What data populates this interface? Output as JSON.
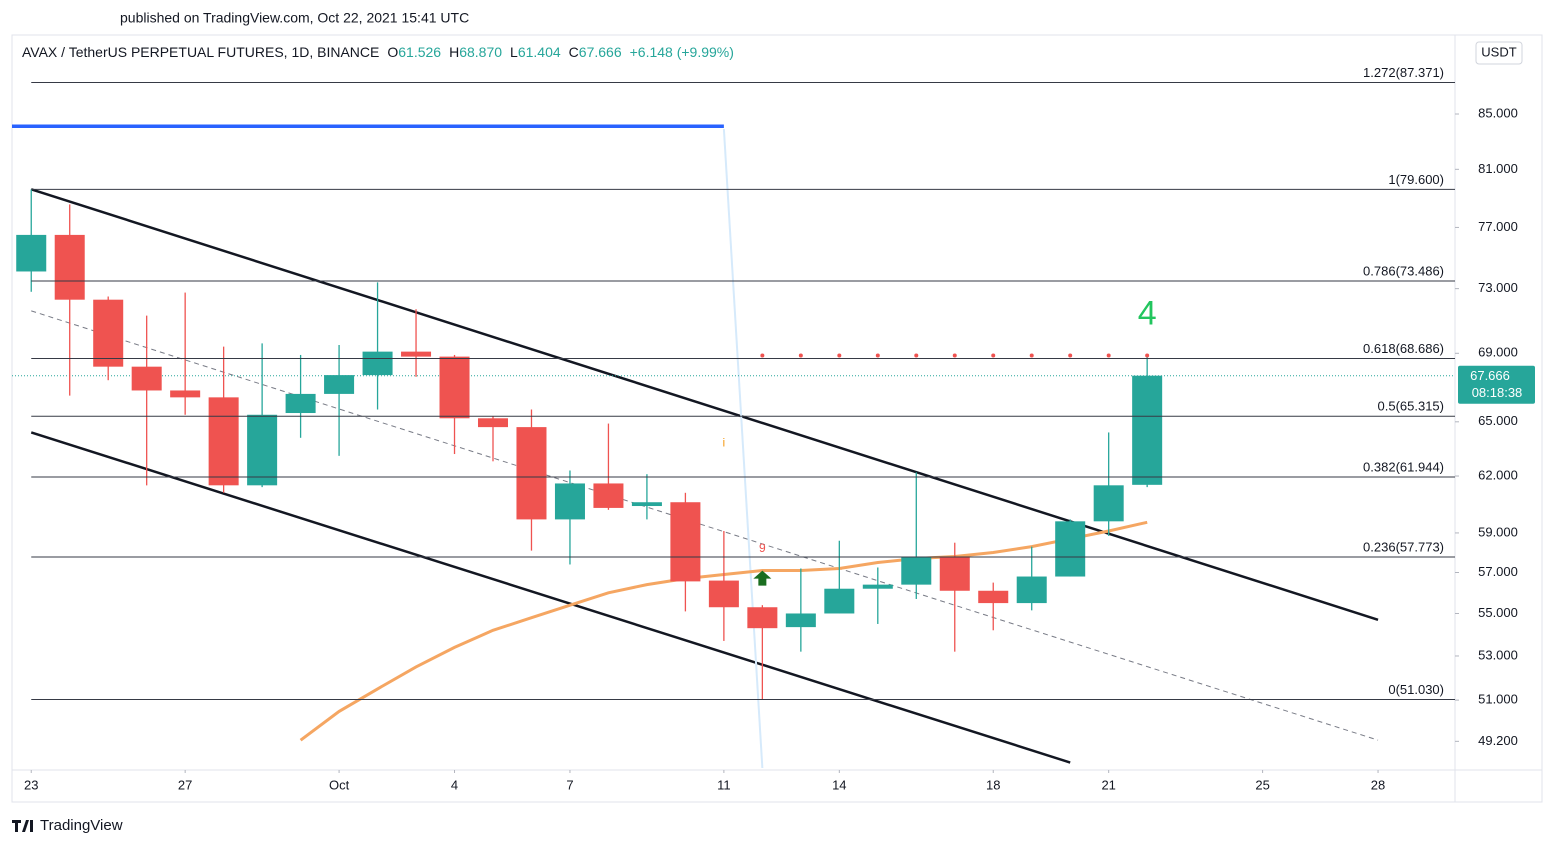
{
  "header": {
    "published": "published on TradingView.com, Oct 22, 2021 15:41 UTC",
    "logo": "TradingView"
  },
  "chart_data": {
    "type": "candlestick",
    "title": "AVAX / TetherUS PERPETUAL FUTURES, 1D, BINANCE",
    "currency": "USDT",
    "ohlc_legend": {
      "open_label": "O",
      "open": "61.526",
      "high_label": "H",
      "high": "68.870",
      "low_label": "L",
      "low": "61.404",
      "close_label": "C",
      "close": "67.666",
      "change": "+6.148 (+9.99%)"
    },
    "x": [
      "2021-09-23",
      "2021-09-24",
      "2021-09-25",
      "2021-09-26",
      "2021-09-27",
      "2021-09-28",
      "2021-09-29",
      "2021-09-30",
      "2021-10-01",
      "2021-10-02",
      "2021-10-03",
      "2021-10-04",
      "2021-10-05",
      "2021-10-06",
      "2021-10-07",
      "2021-10-08",
      "2021-10-09",
      "2021-10-10",
      "2021-10-11",
      "2021-10-12",
      "2021-10-13",
      "2021-10-14",
      "2021-10-15",
      "2021-10-16",
      "2021-10-17",
      "2021-10-18",
      "2021-10-19",
      "2021-10-20",
      "2021-10-21",
      "2021-10-22"
    ],
    "open": [
      74.1,
      76.5,
      72.3,
      68.2,
      66.8,
      66.4,
      61.5,
      65.5,
      66.6,
      67.7,
      69.1,
      68.8,
      65.2,
      64.7,
      59.7,
      61.6,
      60.4,
      60.6,
      56.6,
      55.3,
      54.35,
      55.0,
      56.2,
      56.4,
      57.75,
      56.1,
      55.5,
      56.8,
      59.6,
      61.526
    ],
    "high": [
      79.6,
      78.56,
      72.5,
      71.3,
      72.75,
      69.4,
      69.6,
      68.9,
      69.5,
      73.4,
      71.7,
      68.9,
      65.3,
      65.7,
      62.3,
      64.9,
      62.1,
      61.1,
      59.1,
      55.4,
      57.2,
      58.6,
      57.25,
      62.2,
      58.5,
      56.5,
      58.3,
      59.7,
      64.4,
      68.87
    ],
    "low": [
      72.8,
      66.5,
      67.4,
      61.5,
      65.4,
      61.1,
      61.4,
      64.1,
      63.1,
      65.7,
      67.6,
      63.2,
      62.8,
      58.1,
      57.4,
      60.2,
      59.7,
      55.1,
      53.7,
      51.03,
      53.2,
      55.0,
      54.5,
      55.7,
      53.2,
      54.2,
      55.15,
      56.8,
      58.85,
      61.404
    ],
    "close": [
      76.5,
      72.3,
      68.2,
      66.8,
      66.4,
      61.5,
      65.4,
      66.6,
      67.7,
      69.1,
      68.8,
      65.2,
      64.7,
      59.7,
      61.6,
      60.3,
      60.6,
      56.56,
      55.3,
      54.3,
      55.0,
      56.2,
      56.4,
      57.75,
      56.1,
      55.5,
      56.8,
      59.6,
      61.5,
      67.666
    ],
    "up_color": "#26a69a",
    "down_color": "#ef5350",
    "countdown": "08:18:38",
    "log_scale": true,
    "xlim": [
      "2021-09-22T12:00:00Z",
      "2021-10-30T00:00:00Z"
    ],
    "xticks": [
      {
        "value": "2021-09-23",
        "label": "23"
      },
      {
        "value": "2021-09-27",
        "label": "27"
      },
      {
        "value": "2021-10-01",
        "label": "Oct"
      },
      {
        "value": "2021-10-04",
        "label": "4"
      },
      {
        "value": "2021-10-07",
        "label": "7"
      },
      {
        "value": "2021-10-11",
        "label": "11"
      },
      {
        "value": "2021-10-14",
        "label": "14"
      },
      {
        "value": "2021-10-18",
        "label": "18"
      },
      {
        "value": "2021-10-21",
        "label": "21"
      },
      {
        "value": "2021-10-25",
        "label": "25"
      },
      {
        "value": "2021-10-28",
        "label": "28"
      }
    ],
    "ylim": [
      48.07,
      91.06
    ],
    "yticks": [
      {
        "value": 85,
        "label": "85.000"
      },
      {
        "value": 81,
        "label": "81.000"
      },
      {
        "value": 77,
        "label": "77.000"
      },
      {
        "value": 73,
        "label": "73.000"
      },
      {
        "value": 69,
        "label": "69.000"
      },
      {
        "value": 65,
        "label": "65.000"
      },
      {
        "value": 62,
        "label": "62.000"
      },
      {
        "value": 59,
        "label": "59.000"
      },
      {
        "value": 57,
        "label": "57.000"
      },
      {
        "value": 55,
        "label": "55.000"
      },
      {
        "value": 53,
        "label": "53.000"
      },
      {
        "value": 51,
        "label": "51.000"
      },
      {
        "value": 49.2,
        "label": "49.200"
      }
    ],
    "moving_average": {
      "color": "#f5a662",
      "values": [
        null,
        null,
        null,
        null,
        null,
        null,
        null,
        49.25,
        50.5,
        51.5,
        52.5,
        53.4,
        54.2,
        54.8,
        55.4,
        56.0,
        56.4,
        56.7,
        56.9,
        57.1,
        57.1,
        57.2,
        57.5,
        57.7,
        57.8,
        58.0,
        58.3,
        58.7,
        59.1,
        59.55
      ]
    },
    "fib_levels": [
      {
        "value": 87.371,
        "label": "1.272(87.371)"
      },
      {
        "value": 79.6,
        "label": "1(79.600)"
      },
      {
        "value": 73.486,
        "label": "0.786(73.486)"
      },
      {
        "value": 68.686,
        "label": "0.618(68.686)"
      },
      {
        "value": 65.315,
        "label": "0.5(65.315)"
      },
      {
        "value": 61.944,
        "label": "0.382(61.944)"
      },
      {
        "value": 57.773,
        "label": "0.236(57.773)"
      },
      {
        "value": 51.03,
        "label": "0(51.030)"
      }
    ],
    "trend_lines": [
      {
        "color": "#131722",
        "width": 2.5,
        "dashed": false,
        "points": [
          [
            "2021-09-23",
            79.6
          ],
          [
            "2021-10-28",
            54.7
          ]
        ]
      },
      {
        "color": "#131722",
        "width": 2.5,
        "dashed": false,
        "points": [
          [
            "2021-09-23",
            64.4
          ],
          [
            "2021-10-20",
            48.3
          ]
        ]
      },
      {
        "color": "#787b86",
        "width": 1,
        "dashed": true,
        "points": [
          [
            "2021-09-23",
            71.6
          ],
          [
            "2021-10-28",
            49.25
          ]
        ]
      },
      {
        "color": "#2962ff",
        "width": 3.5,
        "dashed": false,
        "points": [
          [
            "2021-09-22T12:00:00Z",
            84.1
          ],
          [
            "2021-10-11",
            84.1
          ]
        ]
      },
      {
        "color": "#d6eafb",
        "width": 2,
        "dashed": false,
        "points": [
          [
            "2021-10-11",
            83.9
          ],
          [
            "2021-10-12",
            48.07
          ]
        ]
      }
    ],
    "resistance_dots": {
      "value": 68.87,
      "from": "2021-10-12",
      "to": "2021-10-22",
      "color": "#ef5350"
    },
    "annotations": [
      {
        "text": "4",
        "x": "2021-10-22",
        "y": 71.3,
        "color": "#22c55e",
        "size": 34
      },
      {
        "text": "9",
        "x": "2021-10-12",
        "y": 58.2,
        "color": "#ef5350",
        "size": 12
      },
      {
        "text": "i",
        "x": "2021-10-11",
        "y": 63.8,
        "color": "#f59c1a",
        "size": 12
      }
    ],
    "arrow": {
      "x": "2021-10-12",
      "y": 56.6,
      "color": "#1b6e20"
    }
  }
}
